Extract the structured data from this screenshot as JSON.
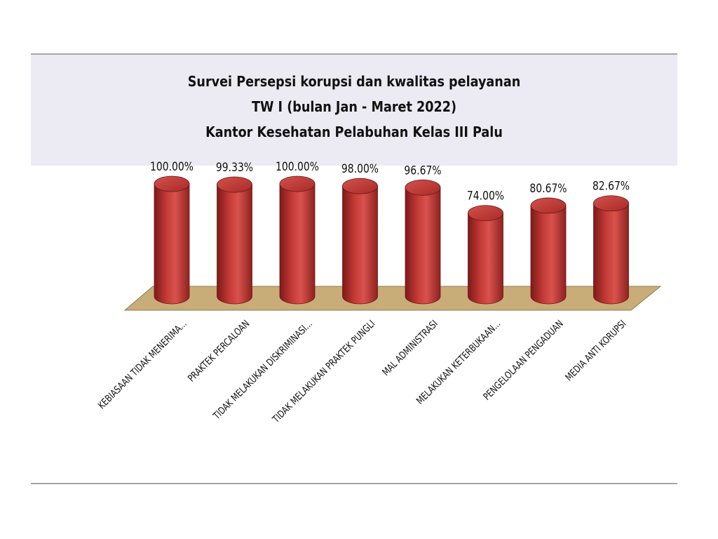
{
  "chart_data": {
    "type": "bar",
    "style": "3d-cylinder",
    "title_lines": [
      "Survei Persepsi korupsi dan kwalitas pelayanan",
      "TW I (bulan Jan - Maret 2022)",
      "Kantor Kesehatan Pelabuhan Kelas III Palu"
    ],
    "categories": [
      "KEBIASAAN TIDAK MENERIMA...",
      "PRAKTEK PERCALOAN",
      "TIDAK MELAKUKAN DISKRIMINASI...",
      "TIDAK MELAKUKAN PRAKTEK PUNGLI",
      "MAL ADMINISTRASI",
      "MELAKUKAN KETERBUKAAN...",
      "PENGELOLAAN PENGADUAN",
      "MEDIA ANTI KORUPSI"
    ],
    "values": [
      100.0,
      99.33,
      100.0,
      98.0,
      96.67,
      74.0,
      80.67,
      82.67
    ],
    "value_labels": [
      "100.00%",
      "99.33%",
      "100.00%",
      "98.00%",
      "96.67%",
      "74.00%",
      "80.67%",
      "82.67%"
    ],
    "ylim": [
      0,
      100
    ],
    "gridlines": false,
    "legend": "none",
    "colors": {
      "bar": "#b8312f",
      "bar_dark": "#7c1a19",
      "bar_light": "#e06a66",
      "floor": "#c8ad78",
      "title_band": "#eceaf3"
    }
  }
}
